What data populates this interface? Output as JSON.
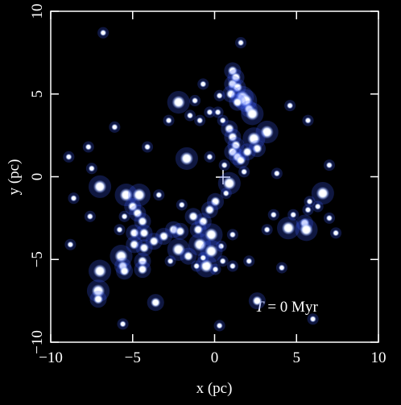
{
  "chart_data": {
    "type": "scatter",
    "xlabel": "x (pc)",
    "ylabel": "y (pc)",
    "annotation": {
      "symbol": "T",
      "text": "= 0 Myr"
    },
    "color": "#ffffff",
    "glow": "#3a5cff",
    "xlim": [
      -10,
      10
    ],
    "ylim": [
      -10,
      10
    ],
    "xticks": [
      {
        "value": -10,
        "label": "−10"
      },
      {
        "value": -5,
        "label": "−5"
      },
      0,
      5,
      10
    ],
    "yticks": [
      {
        "value": -10,
        "label": "−10"
      },
      {
        "value": -5,
        "label": "−5"
      },
      0,
      5,
      10
    ],
    "x": [
      -6.8,
      1.6,
      1.1,
      1.3,
      1.1,
      1.4,
      -0.7,
      -2.2,
      -1.2,
      0.3,
      1.0,
      1.7,
      1.9,
      1.4,
      2.1,
      4.6,
      -0.3,
      0.2,
      2.3,
      -1.5,
      -0.9,
      -2.8,
      0.5,
      5.7,
      -6.1,
      0.9,
      1.1,
      1.3,
      1.1,
      1.4,
      1.6,
      3.2,
      2.4,
      2.6,
      2.0,
      -4.1,
      -1.7,
      -0.3,
      0.6,
      -7.7,
      -8.9,
      1.8,
      3.8,
      7.0,
      -7.5,
      -7.0,
      0.9,
      0.7,
      -8.6,
      -5.4,
      -4.6,
      -3.4,
      6.6,
      5.8,
      6.3,
      5.7,
      0.05,
      -0.3,
      -0.7,
      -1.0,
      -1.3,
      -5.0,
      -4.7,
      -5.5,
      -4.4,
      -7.6,
      -2.0,
      3.6,
      4.8,
      5.5,
      7.0,
      -5.8,
      -4.9,
      -4.3,
      -2.5,
      -2.1,
      -0.2,
      1.1,
      4.5,
      5.6,
      3.2,
      7.4,
      -3.1,
      -3.7,
      -0.9,
      -8.8,
      -4.9,
      -4.3,
      -2.2,
      -1.6,
      0.4,
      -0.2,
      -5.7,
      -2.7,
      -4.4,
      -4.4,
      -5.6,
      -5.5,
      -0.5,
      -0.7,
      0.5,
      1.1,
      2.1,
      -7.0,
      0.05,
      -1.1,
      -7.1,
      -7.1,
      4.1,
      -3.6,
      2.6,
      -5.6,
      0.3,
      6.0
    ],
    "values": [
      8.7,
      8.1,
      6.4,
      6.0,
      5.6,
      5.4,
      5.6,
      4.5,
      4.6,
      4.9,
      5.0,
      4.8,
      4.6,
      4.5,
      4.1,
      4.3,
      3.9,
      3.9,
      3.8,
      3.7,
      3.4,
      3.4,
      3.4,
      3.4,
      3.0,
      2.9,
      2.4,
      1.9,
      1.5,
      1.2,
      1.0,
      2.7,
      2.3,
      1.7,
      1.5,
      1.8,
      1.1,
      1.2,
      0.7,
      1.8,
      1.2,
      0.3,
      0.2,
      0.7,
      0.5,
      -0.6,
      -0.4,
      -1.0,
      -1.3,
      -1.1,
      -1.1,
      -1.1,
      -1.0,
      -1.5,
      -1.8,
      -2.0,
      -1.5,
      -2.0,
      -2.7,
      -3.2,
      -2.4,
      -1.8,
      -2.2,
      -2.4,
      -2.7,
      -2.4,
      -1.7,
      -2.3,
      -2.3,
      -2.8,
      -2.5,
      -3.2,
      -3.4,
      -3.4,
      -3.2,
      -3.3,
      -3.5,
      -3.5,
      -3.1,
      -3.2,
      -3.2,
      -3.4,
      -3.6,
      -3.9,
      -4.1,
      -4.1,
      -4.1,
      -4.3,
      -4.4,
      -4.8,
      -4.2,
      -4.5,
      -4.8,
      -5.1,
      -5.1,
      -5.6,
      -5.4,
      -5.7,
      -5.4,
      -4.9,
      -5.1,
      -5.4,
      -5.1,
      -5.7,
      -5.6,
      -5.4,
      -6.9,
      -7.4,
      -5.5,
      -7.6,
      -7.5,
      -8.9,
      -9.0,
      -8.6
    ],
    "sizes": [
      1,
      1,
      2,
      2,
      2,
      2,
      1,
      3,
      1,
      1,
      2,
      3,
      3,
      2,
      2,
      1,
      1,
      1,
      3,
      1,
      1,
      1,
      1,
      1,
      1,
      2,
      2,
      2,
      2,
      2,
      2,
      3,
      3,
      2,
      2,
      1,
      3,
      1,
      1,
      1,
      1,
      1,
      1,
      1,
      1,
      3,
      3,
      1,
      1,
      3,
      3,
      1,
      3,
      1,
      1,
      1,
      2,
      2,
      2,
      2,
      2,
      2,
      2,
      1,
      2,
      1,
      1,
      1,
      1,
      2,
      1,
      1,
      2,
      2,
      2,
      2,
      3,
      1,
      3,
      3,
      1,
      1,
      2,
      2,
      3,
      1,
      2,
      2,
      3,
      2,
      1,
      3,
      3,
      1,
      2,
      2,
      2,
      2,
      3,
      1,
      1,
      1,
      1,
      3,
      1,
      1,
      3,
      2,
      1,
      2,
      2,
      1,
      1,
      1
    ]
  }
}
